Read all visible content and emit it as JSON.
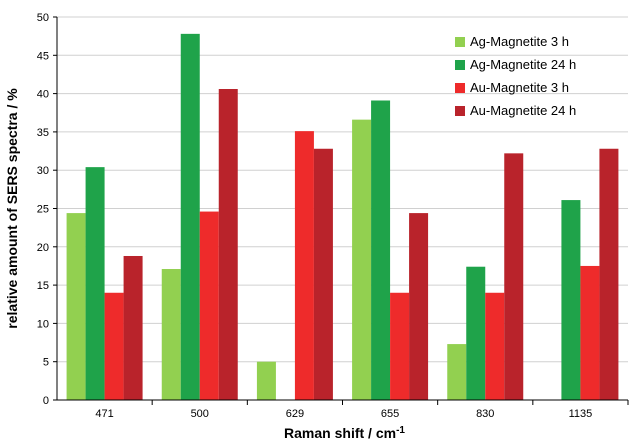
{
  "chart_data": {
    "type": "bar",
    "categories": [
      "471",
      "500",
      "629",
      "655",
      "830",
      "1135"
    ],
    "series": [
      {
        "name": "Ag-Magnetite 3 h",
        "color": "#92d050",
        "values": [
          24.4,
          17.1,
          5.0,
          36.6,
          7.3,
          0
        ]
      },
      {
        "name": "Ag-Magnetite 24 h",
        "color": "#1fa34a",
        "values": [
          30.4,
          47.8,
          0,
          39.1,
          17.4,
          26.1
        ]
      },
      {
        "name": "Au-Magnetite 3 h",
        "color": "#ee2b2b",
        "values": [
          14.0,
          24.6,
          35.1,
          14.0,
          14.0,
          17.5
        ]
      },
      {
        "name": "Au-Magnetite 24 h",
        "color": "#b9232b",
        "values": [
          18.8,
          40.6,
          32.8,
          24.4,
          32.2,
          32.8
        ]
      }
    ],
    "y_ticks": [
      "0",
      "5",
      "10",
      "15",
      "20",
      "25",
      "30",
      "35",
      "40",
      "45",
      "50"
    ],
    "ylim": [
      0,
      50
    ],
    "xlabel_main": "Raman shift / cm",
    "xlabel_sup": "-1",
    "ylabel": "relative amount of SERS spectra / %",
    "grid": "horizontal",
    "legend_position": "top-right"
  }
}
